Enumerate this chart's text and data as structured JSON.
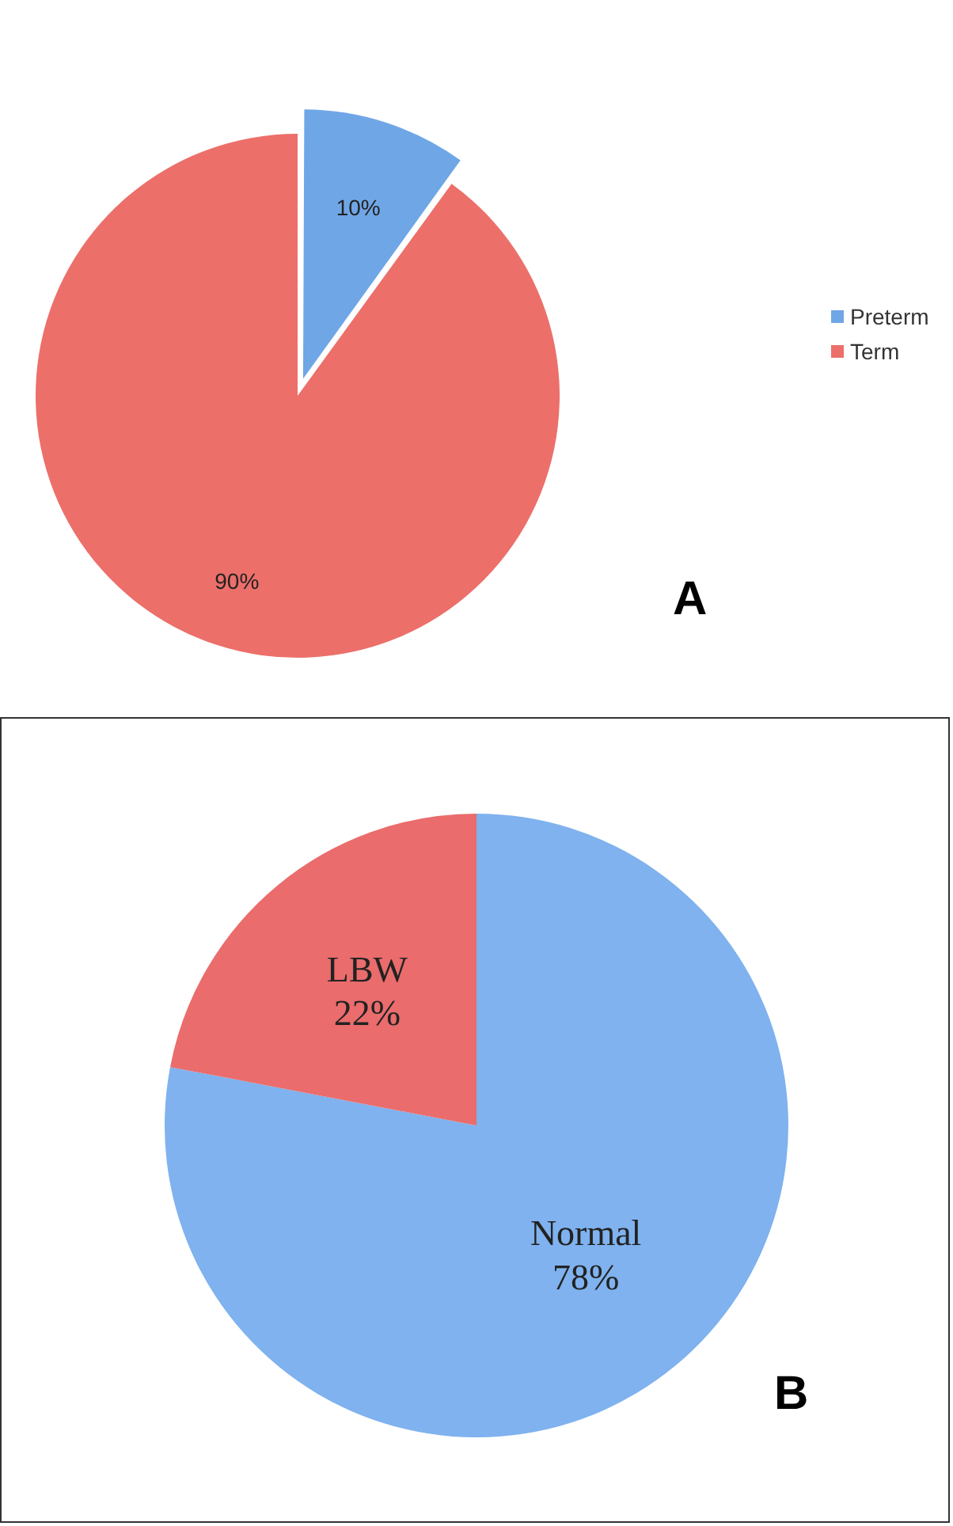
{
  "chart_data": [
    {
      "type": "pie",
      "categories": [
        "Preterm",
        "Term"
      ],
      "values": [
        10,
        90
      ],
      "colors": [
        "#6fa6e6",
        "#ec6f6a"
      ],
      "value_labels": [
        "10%",
        "90%"
      ],
      "legend": "right",
      "annotations": [
        "A"
      ]
    },
    {
      "type": "pie",
      "categories": [
        "Normal",
        "LBW"
      ],
      "values": [
        78,
        22
      ],
      "colors": [
        "#7fb2ee",
        "#ea6c6c"
      ],
      "value_labels": [
        "78%",
        "22%"
      ],
      "annotations": [
        "B"
      ]
    }
  ]
}
